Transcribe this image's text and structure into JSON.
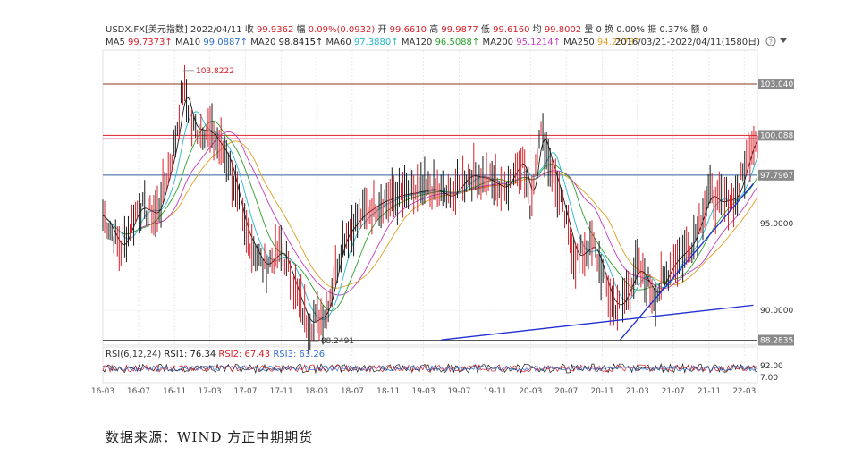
{
  "header": {
    "row1": [
      {
        "text": "USDX.FX[美元指数]",
        "color": "#333333"
      },
      {
        "text": "2022/04/11",
        "color": "#333333"
      },
      {
        "text": "收",
        "color": "#333333"
      },
      {
        "text": "99.9362",
        "color": "#d8202a"
      },
      {
        "text": "幅",
        "color": "#333333"
      },
      {
        "text": "0.09%(0.0932)",
        "color": "#d8202a"
      },
      {
        "text": "开",
        "color": "#333333"
      },
      {
        "text": "99.6610",
        "color": "#d8202a"
      },
      {
        "text": "高",
        "color": "#333333"
      },
      {
        "text": "99.9877",
        "color": "#d8202a"
      },
      {
        "text": "低",
        "color": "#333333"
      },
      {
        "text": "99.6160",
        "color": "#d8202a"
      },
      {
        "text": "均",
        "color": "#333333"
      },
      {
        "text": "99.8002",
        "color": "#d8202a"
      },
      {
        "text": "量 0",
        "color": "#333333"
      },
      {
        "text": "换 0.00%",
        "color": "#333333"
      },
      {
        "text": "振 0.37%",
        "color": "#333333"
      },
      {
        "text": "额 0",
        "color": "#333333"
      }
    ],
    "row2": [
      {
        "text": "MA5",
        "color": "#333333"
      },
      {
        "text": "99.7373↑",
        "color": "#d8202a"
      },
      {
        "text": "MA10",
        "color": "#333333"
      },
      {
        "text": "99.0887↑",
        "color": "#2f6fd0"
      },
      {
        "text": "MA20",
        "color": "#333333"
      },
      {
        "text": "98.8415↑",
        "color": "#1a1a1a"
      },
      {
        "text": "MA60",
        "color": "#333333"
      },
      {
        "text": "97.3880↑",
        "color": "#25b5d0"
      },
      {
        "text": "MA120",
        "color": "#333333"
      },
      {
        "text": "96.5088↑",
        "color": "#2ca02c"
      },
      {
        "text": "MA200",
        "color": "#333333"
      },
      {
        "text": "95.1214↑",
        "color": "#c040c0"
      },
      {
        "text": "MA250",
        "color": "#333333"
      },
      {
        "text": "94.2578↑",
        "color": "#e0a020"
      }
    ],
    "range_label": "2016/03/21-2022/04/11(1580日)",
    "help_icon": "question-circle-icon",
    "dropdown_icon": "caret-down-icon"
  },
  "rsi": {
    "label": "RSI(6,12,24)",
    "values": [
      {
        "name": "RSI1:",
        "value": "76.34",
        "color": "#1a1a1a"
      },
      {
        "name": "RSI2:",
        "value": "67.43",
        "color": "#d8202a"
      },
      {
        "name": "RSI3:",
        "value": "63.26",
        "color": "#2f6fd0"
      }
    ],
    "axis": [
      "92.00",
      "7.00"
    ]
  },
  "chart_data": {
    "type": "line",
    "instrument": "USDX.FX[美元指数]",
    "y_axis_labels": [
      "95.0000",
      "90.0000"
    ],
    "ylim": [
      88.0,
      105.0
    ],
    "x_tick_labels": [
      "16-03",
      "16-07",
      "16-11",
      "17-03",
      "17-07",
      "17-11",
      "18-03",
      "18-07",
      "18-11",
      "19-03",
      "19-07",
      "19-11",
      "20-03",
      "20-07",
      "20-11",
      "21-03",
      "21-07",
      "21-11",
      "22-03"
    ],
    "series": [
      {
        "name": "Close",
        "color": "#1a1a1a",
        "x": [
          "2016-03",
          "2016-05",
          "2016-07",
          "2016-09",
          "2016-11",
          "2016-12",
          "2017-01",
          "2017-03",
          "2017-05",
          "2017-07",
          "2017-09",
          "2017-11",
          "2018-01",
          "2018-02",
          "2018-04",
          "2018-06",
          "2018-08",
          "2018-10",
          "2018-12",
          "2019-02",
          "2019-04",
          "2019-06",
          "2019-08",
          "2019-10",
          "2019-12",
          "2020-02",
          "2020-03",
          "2020-04",
          "2020-06",
          "2020-08",
          "2020-10",
          "2020-12",
          "2021-01",
          "2021-03",
          "2021-05",
          "2021-07",
          "2021-09",
          "2021-11",
          "2021-12",
          "2022-02",
          "2022-04"
        ],
        "values": [
          95.5,
          93.5,
          96.0,
          95.5,
          99.5,
          103.0,
          100.5,
          100.3,
          98.8,
          94.5,
          92.5,
          93.5,
          90.5,
          89.2,
          89.8,
          94.2,
          95.5,
          96.2,
          96.6,
          96.8,
          97.0,
          96.5,
          97.8,
          97.6,
          97.0,
          98.8,
          96.0,
          100.5,
          97.0,
          93.0,
          93.8,
          90.5,
          90.2,
          92.5,
          90.8,
          92.8,
          93.8,
          96.8,
          96.2,
          96.5,
          99.94
        ]
      },
      {
        "name": "MA20",
        "color": "#1a1a1a",
        "values": []
      },
      {
        "name": "MA60",
        "color": "#25b5d0",
        "values": []
      },
      {
        "name": "MA120",
        "color": "#2ca02c",
        "values": []
      },
      {
        "name": "MA200",
        "color": "#c040c0",
        "values": []
      },
      {
        "name": "MA250",
        "color": "#e0a020",
        "values": []
      }
    ],
    "horizontal_levels": [
      {
        "value": 103.04,
        "label": "103.040",
        "color": "#8b3a1a",
        "label_bg": true
      },
      {
        "value": 100.088,
        "label": "100.088",
        "color": "#d8202a",
        "label_bg": true
      },
      {
        "value": 97.7967,
        "label": "97.7967",
        "color": "#2f5f9f",
        "label_bg": true
      },
      {
        "value": 88.2835,
        "label": "88.2835",
        "color": "#555555",
        "label_bg": true
      }
    ],
    "annotations": [
      {
        "text": "103.8222",
        "x": "2016-12",
        "y": 103.8222,
        "color": "#d8202a"
      },
      {
        "text": "88.2491",
        "x": "2018-02",
        "y": 88.2491,
        "color": "#333333"
      }
    ],
    "trendlines": [
      {
        "from": {
          "x": "2019-05",
          "y": 88.3
        },
        "to": {
          "x": "2022-04",
          "y": 90.3
        },
        "color": "#1f2fd0"
      },
      {
        "from": {
          "x": "2021-01",
          "y": 88.3
        },
        "to": {
          "x": "2022-04",
          "y": 97.3
        },
        "color": "#1f2fd0"
      }
    ],
    "grid": "light vertical dotted",
    "legend": "top"
  },
  "source_text": "数据来源：WIND  方正中期期货"
}
